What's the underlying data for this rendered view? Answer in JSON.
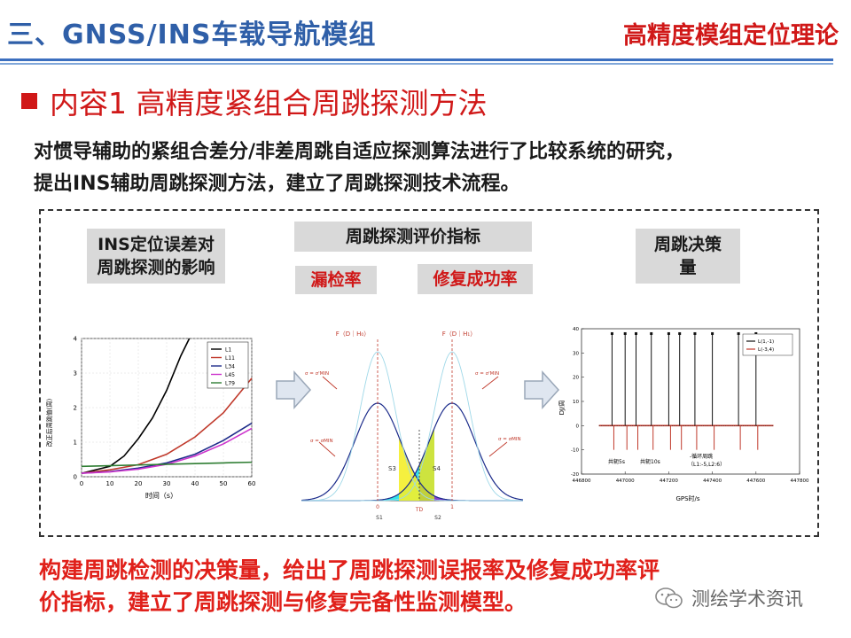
{
  "header": {
    "title_left": "三、GNSS/INS车载导航模组",
    "title_right": "高精度模组定位理论"
  },
  "section": {
    "title": "内容1  高精度紧组合周跳探测方法"
  },
  "intro": {
    "line1": "对惯导辅助的紧组合差分/非差周跳自适应探测算法进行了比较系统的研究，",
    "line2": "提出INS辅助周跳探测方法，建立了周跳探测技术流程。"
  },
  "diagram": {
    "tag_ins_line1": "INS定位误差对",
    "tag_ins_line2": "周跳探测的影响",
    "tag_metrics": "周跳探测评价指标",
    "tag_miss": "漏检率",
    "tag_repair": "修复成功率",
    "tag_decision_line1": "周跳决策",
    "tag_decision_line2": "量"
  },
  "chart_left": {
    "chart_data": {
      "type": "line",
      "xlabel": "时间（s）",
      "ylabel": "改正后周跳值(周)",
      "xlim": [
        0,
        60
      ],
      "ylim": [
        0,
        4
      ],
      "x_ticks": [
        "0",
        "10",
        "20",
        "30",
        "40",
        "50",
        "60"
      ],
      "y_ticks": [
        "0",
        "1",
        "2",
        "3",
        "4"
      ],
      "series": [
        {
          "name": "L1",
          "color": "#000000",
          "x": [
            0,
            10,
            15,
            20,
            25,
            30,
            35,
            38
          ],
          "y": [
            0.1,
            0.3,
            0.6,
            1.1,
            1.7,
            2.5,
            3.5,
            4.0
          ]
        },
        {
          "name": "L11",
          "color": "#c0392b",
          "x": [
            0,
            10,
            20,
            30,
            40,
            50,
            60
          ],
          "y": [
            0.1,
            0.2,
            0.35,
            0.65,
            1.15,
            1.85,
            2.85
          ]
        },
        {
          "name": "L34",
          "color": "#1f2d8a",
          "x": [
            0,
            10,
            20,
            30,
            40,
            50,
            60
          ],
          "y": [
            0.1,
            0.15,
            0.25,
            0.4,
            0.65,
            1.05,
            1.55
          ]
        },
        {
          "name": "L45",
          "color": "#cc33cc",
          "x": [
            0,
            10,
            20,
            30,
            40,
            50,
            60
          ],
          "y": [
            0.1,
            0.14,
            0.22,
            0.36,
            0.6,
            0.95,
            1.4
          ]
        },
        {
          "name": "L79",
          "color": "#2e7d32",
          "x": [
            0,
            10,
            20,
            30,
            40,
            50,
            60
          ],
          "y": [
            0.3,
            0.32,
            0.34,
            0.36,
            0.38,
            0.4,
            0.42
          ]
        }
      ]
    }
  },
  "chart_mid": {
    "label_h0": "F（D｜H₀）",
    "label_h1": "F（D｜H₁）",
    "sigma_left_top": "σ = σ'MIN",
    "sigma_left_bot": "σ = σMIN",
    "sigma_right_top": "σ = σ'MIN",
    "sigma_right_bot": "σ = σMIN",
    "region_s3": "S3",
    "region_s4": "S4",
    "axis_0": "0",
    "axis_1": "1",
    "axis_td": "TD",
    "region_s1": "S1",
    "region_s2": "S2"
  },
  "chart_right": {
    "chart_data": {
      "type": "line",
      "xlabel": "GPS时/s",
      "ylabel": "DJ/周",
      "xlim": [
        446800,
        447800
      ],
      "ylim": [
        -20,
        40
      ],
      "x_ticks": [
        "446800",
        "447000",
        "447200",
        "447400",
        "447600",
        "447800"
      ],
      "y_ticks": [
        "-20",
        "-10",
        "0",
        "10",
        "20",
        "30",
        "40"
      ],
      "legend": [
        "L(1,-1)",
        "L(-3,4)"
      ],
      "spike_x": [
        446940,
        447000,
        447050,
        447120,
        447200,
        447250,
        447320,
        447400,
        447520,
        447600
      ],
      "spike_black": 38,
      "spike_red": -10,
      "annotations": [
        "共轭5s",
        "共轭10s",
        "-循环周跳",
        "（L1:-5,L2:6）"
      ]
    }
  },
  "conclusion": {
    "line1": "构建周跳检测的决策量，给出了周跳探测误报率及修复成功率评",
    "line2": "价指标，建立了周跳探测与修复完备性监测模型。"
  },
  "watermark": {
    "text": "测绘学术资讯"
  }
}
